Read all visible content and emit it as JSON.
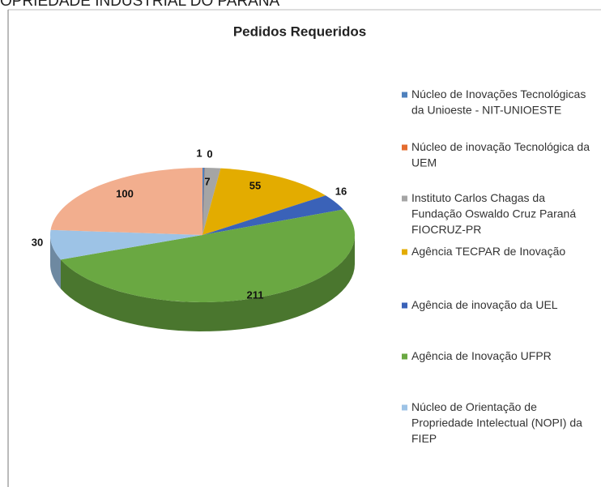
{
  "page_heading": "OPRIEDADE INDUSTRIAL DO PARANA",
  "chart_data": {
    "type": "pie3d",
    "title": "Pedidos Requeridos",
    "categories": [
      "Núcleo de Inovações Tecnológicas da Unioeste - NIT-UNIOESTE",
      "Núcleo de inovação Tecnológica da UEM",
      "Instituto Carlos Chagas da Fundação Oswaldo Cruz Paraná FIOCRUZ-PR",
      "Agência TECPAR de Inovação",
      "Agência de inovação da UEL",
      "Agência de Inovação UFPR",
      "Núcleo de Orientação de Propriedade Intelectual (NOPI) da FIEP",
      null
    ],
    "values": [
      1,
      0,
      7,
      55,
      16,
      211,
      30,
      100
    ],
    "colors": [
      "#4f81bd",
      "#e46c2f",
      "#a5a5a5",
      "#e3ac00",
      "#3a62b8",
      "#6aa842",
      "#9dc3e6",
      "#f2ae8e"
    ]
  }
}
